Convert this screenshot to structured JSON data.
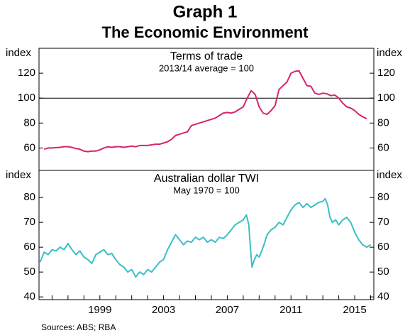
{
  "title": "Graph 1",
  "subtitle": "The Economic Environment",
  "source": "Sources:  ABS; RBA",
  "chart_data": [
    {
      "type": "line",
      "title": "Terms of trade",
      "subtitle": "2013/14 average = 100",
      "y_label": "index",
      "color": "#d6246e",
      "xlim": [
        1995.18,
        2016.2
      ],
      "ylim": [
        42,
        140
      ],
      "yticks": [
        60,
        80,
        100,
        120
      ],
      "reference_line": 100,
      "x": [
        1995.5,
        1995.75,
        1996,
        1996.5,
        1996.75,
        1997,
        1997.25,
        1997.5,
        1997.75,
        1998,
        1998.25,
        1998.5,
        1998.75,
        1999,
        1999.25,
        1999.5,
        1999.75,
        2000,
        2000.25,
        2000.5,
        2000.75,
        2001,
        2001.25,
        2001.5,
        2001.75,
        2002,
        2002.25,
        2002.5,
        2002.75,
        2003,
        2003.25,
        2003.5,
        2003.75,
        2004,
        2004.25,
        2004.5,
        2004.75,
        2005,
        2005.25,
        2005.5,
        2005.75,
        2006,
        2006.25,
        2006.5,
        2006.75,
        2007,
        2007.25,
        2007.5,
        2007.75,
        2008,
        2008.25,
        2008.5,
        2008.75,
        2009,
        2009.25,
        2009.5,
        2009.75,
        2010,
        2010.25,
        2010.5,
        2010.75,
        2011,
        2011.25,
        2011.5,
        2011.75,
        2012,
        2012.25,
        2012.5,
        2012.75,
        2013,
        2013.25,
        2013.5,
        2013.75,
        2014,
        2014.25,
        2014.5,
        2014.75,
        2015,
        2015.25,
        2015.5,
        2015.75
      ],
      "values": [
        59,
        60,
        60,
        60.5,
        61,
        61,
        60.5,
        59.5,
        59,
        57.5,
        57,
        57.5,
        57.5,
        58.5,
        60,
        61,
        60.5,
        61,
        61,
        60.5,
        61,
        61.5,
        61,
        62,
        62,
        62,
        62.5,
        63,
        63,
        64,
        65,
        67,
        70,
        71,
        72,
        73,
        78,
        79,
        80,
        81,
        82,
        83,
        84,
        86,
        88,
        88.5,
        88,
        89,
        91,
        93,
        100,
        106,
        103,
        93,
        88,
        87,
        90,
        94,
        107,
        110,
        113,
        120,
        121.5,
        122,
        116,
        110,
        109.5,
        104,
        103,
        104,
        103.5,
        102,
        102.5,
        100,
        96,
        93,
        92,
        90,
        87,
        85,
        83.5
      ]
    },
    {
      "type": "line",
      "title": "Australian dollar TWI",
      "subtitle": "May 1970 = 100",
      "y_label": "index",
      "color": "#3bbfc6",
      "xlim": [
        1995.18,
        2016.2
      ],
      "ylim": [
        38.9,
        90.9
      ],
      "yticks": [
        40,
        50,
        60,
        70,
        80
      ],
      "xticks": [
        1999,
        2003,
        2007,
        2011,
        2015
      ],
      "xminorticks": [
        1996,
        1997,
        1998,
        1999,
        2000,
        2001,
        2002,
        2003,
        2004,
        2005,
        2006,
        2007,
        2008,
        2009,
        2010,
        2011,
        2012,
        2013,
        2014,
        2015,
        2016
      ],
      "x": [
        1995.25,
        1995.5,
        1995.75,
        1996,
        1996.25,
        1996.5,
        1996.75,
        1997,
        1997.25,
        1997.5,
        1997.75,
        1998,
        1998.25,
        1998.5,
        1998.75,
        1999,
        1999.25,
        1999.5,
        1999.75,
        2000,
        2000.25,
        2000.5,
        2000.75,
        2001,
        2001.25,
        2001.5,
        2001.75,
        2002,
        2002.25,
        2002.5,
        2002.75,
        2003,
        2003.25,
        2003.5,
        2003.75,
        2004,
        2004.25,
        2004.5,
        2004.75,
        2005,
        2005.25,
        2005.5,
        2005.75,
        2006,
        2006.25,
        2006.5,
        2006.75,
        2007,
        2007.25,
        2007.5,
        2007.75,
        2008,
        2008.2,
        2008.35,
        2008.45,
        2008.55,
        2008.7,
        2008.85,
        2009,
        2009.25,
        2009.5,
        2009.75,
        2010,
        2010.25,
        2010.5,
        2010.75,
        2011,
        2011.25,
        2011.5,
        2011.75,
        2012,
        2012.25,
        2012.5,
        2012.75,
        2013,
        2013.15,
        2013.3,
        2013.45,
        2013.6,
        2013.8,
        2014,
        2014.25,
        2014.5,
        2014.75,
        2015,
        2015.25,
        2015.5,
        2015.75,
        2016
      ],
      "values": [
        54,
        58,
        57,
        59,
        58.5,
        60,
        59,
        61.5,
        59,
        57,
        58.5,
        56,
        55,
        53.5,
        57,
        58,
        59,
        57,
        57.5,
        55,
        53,
        52,
        50,
        51,
        48,
        50,
        49,
        51,
        50,
        52,
        54,
        55,
        59,
        62,
        65,
        63,
        61,
        62.5,
        62,
        64,
        63,
        64,
        62,
        63,
        62,
        64,
        63.5,
        65,
        67,
        69,
        70,
        71,
        73,
        69,
        60,
        52,
        55,
        57,
        56,
        60,
        65,
        67,
        68,
        70,
        69,
        72,
        75,
        77,
        78,
        76,
        77.5,
        76,
        77,
        78,
        78.5,
        79.5,
        77,
        72,
        70,
        71,
        69,
        71,
        72,
        70,
        66,
        63,
        61,
        60,
        61
      ]
    }
  ]
}
